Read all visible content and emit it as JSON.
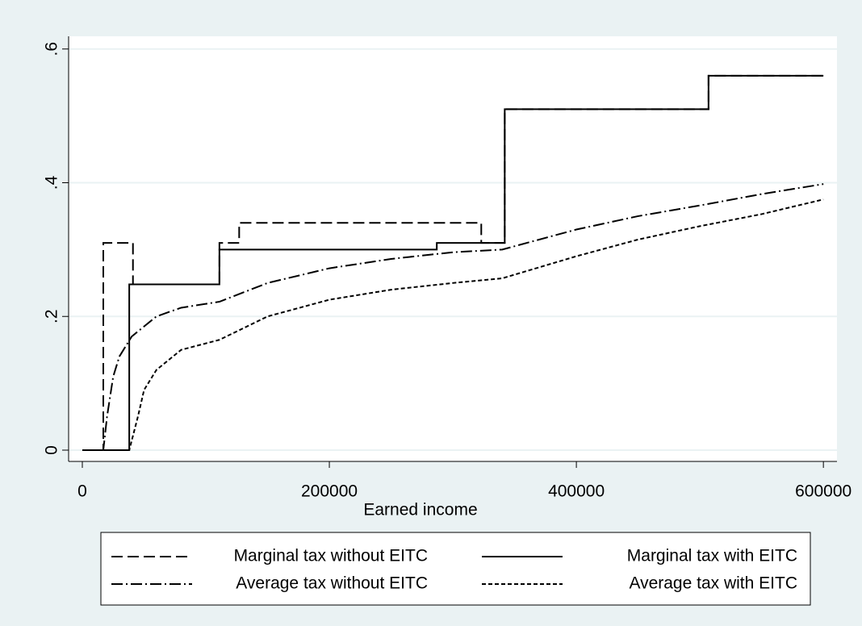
{
  "chart_data": {
    "type": "line",
    "x_label": "Earned income",
    "xlim": [
      -11100,
      611000
    ],
    "ylim": [
      -0.0169,
      0.619
    ],
    "xticks": [
      0,
      200000,
      400000,
      600000
    ],
    "yticks": [
      0,
      {
        "value": 0.2,
        "label": ".2"
      },
      {
        "value": 0.4,
        "label": ".4"
      },
      {
        "value": 0.6,
        "label": ".6"
      }
    ],
    "grid": true,
    "legend": "bottom",
    "series": [
      {
        "name": "Marginal tax without EITC",
        "color": "#000000",
        "style": "dashed",
        "x": [
          0,
          17000,
          17000,
          41000,
          41000,
          111000,
          111000,
          127000,
          127000,
          323000,
          323000,
          342000,
          342000,
          507000,
          507000,
          600000
        ],
        "values": [
          0,
          0,
          0.31,
          0.31,
          0.248,
          0.248,
          0.31,
          0.31,
          0.34,
          0.34,
          0.31,
          0.31,
          0.51,
          0.51,
          0.56,
          0.56
        ]
      },
      {
        "name": "Marginal tax with EITC",
        "color": "#000000",
        "style": "solid",
        "x": [
          0,
          38000,
          38000,
          111000,
          111000,
          287000,
          287000,
          342000,
          342000,
          507000,
          507000,
          600000
        ],
        "values": [
          0,
          0,
          0.248,
          0.248,
          0.3,
          0.3,
          0.31,
          0.31,
          0.51,
          0.51,
          0.56,
          0.56
        ]
      },
      {
        "name": "Average tax without EITC",
        "color": "#000000",
        "style": "dashdot",
        "x": [
          0,
          17000,
          20000,
          25000,
          30000,
          40000,
          60000,
          80000,
          111000,
          150000,
          200000,
          250000,
          300000,
          340000,
          400000,
          450000,
          500000,
          550000,
          600000
        ],
        "values": [
          0,
          0,
          0.05,
          0.11,
          0.14,
          0.17,
          0.2,
          0.213,
          0.222,
          0.25,
          0.272,
          0.286,
          0.296,
          0.3,
          0.33,
          0.35,
          0.366,
          0.383,
          0.398
        ]
      },
      {
        "name": "Average tax with EITC",
        "color": "#000000",
        "style": "dotted",
        "x": [
          0,
          38000,
          45000,
          50000,
          60000,
          80000,
          111000,
          150000,
          200000,
          250000,
          300000,
          340000,
          400000,
          450000,
          500000,
          550000,
          600000
        ],
        "values": [
          0,
          0,
          0.05,
          0.09,
          0.12,
          0.15,
          0.165,
          0.2,
          0.225,
          0.24,
          0.25,
          0.257,
          0.29,
          0.315,
          0.335,
          0.353,
          0.375
        ]
      }
    ]
  }
}
